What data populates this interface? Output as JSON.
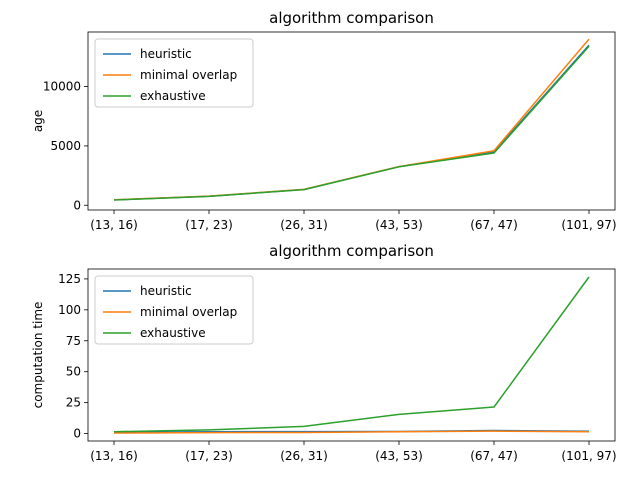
{
  "chart_data": [
    {
      "type": "line",
      "title": "algorithm comparison",
      "xlabel": "",
      "ylabel": "age",
      "categories": [
        "(13, 16)",
        "(17, 23)",
        "(26, 31)",
        "(43, 53)",
        "(67, 47)",
        "(101, 97)"
      ],
      "ylim": [
        -400,
        14600
      ],
      "yticks": [
        0,
        5000,
        10000
      ],
      "grid": false,
      "legend_position": "upper-left",
      "series": [
        {
          "name": "heuristic",
          "color": "#1f77b4",
          "values": [
            450,
            760,
            1330,
            3250,
            4500,
            13500
          ]
        },
        {
          "name": "minimal overlap",
          "color": "#ff7f0e",
          "values": [
            460,
            770,
            1340,
            3260,
            4600,
            14000
          ]
        },
        {
          "name": "exhaustive",
          "color": "#2ca02c",
          "values": [
            440,
            750,
            1320,
            3240,
            4400,
            13400
          ]
        }
      ]
    },
    {
      "type": "line",
      "title": "algorithm comparison",
      "xlabel": "",
      "ylabel": "computation time",
      "categories": [
        "(13, 16)",
        "(17, 23)",
        "(26, 31)",
        "(43, 53)",
        "(67, 47)",
        "(101, 97)"
      ],
      "ylim": [
        -6,
        133
      ],
      "yticks": [
        0,
        25,
        50,
        75,
        100,
        125
      ],
      "grid": false,
      "legend_position": "upper-left",
      "series": [
        {
          "name": "heuristic",
          "color": "#1f77b4",
          "values": [
            1.0,
            1.5,
            1.6,
            1.7,
            2.5,
            1.8
          ]
        },
        {
          "name": "minimal overlap",
          "color": "#ff7f0e",
          "values": [
            0.5,
            0.8,
            0.9,
            1.4,
            2.0,
            1.4
          ]
        },
        {
          "name": "exhaustive",
          "color": "#2ca02c",
          "values": [
            1.5,
            3.0,
            5.8,
            15.5,
            21.5,
            126.5
          ]
        }
      ]
    }
  ]
}
